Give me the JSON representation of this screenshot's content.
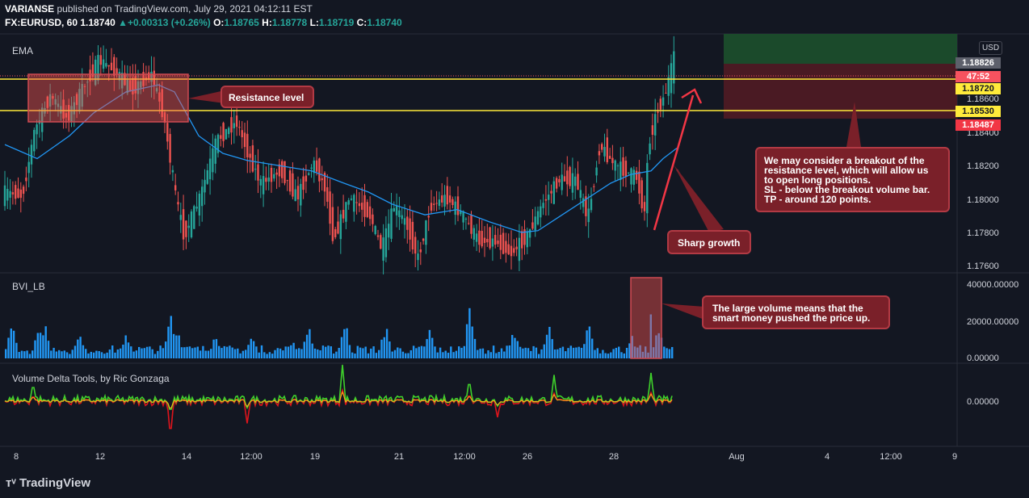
{
  "header": {
    "line1": {
      "author": "VARIANSE",
      "rest": " published on TradingView.com, July 29, 2021 04:12:11 EST"
    },
    "line2": {
      "symbol": "FX:EURUSD, 60",
      "last": "1.18740",
      "arrow": "▲",
      "change": "+0.00313 (+0.26%)",
      "o_lbl": "O:",
      "o": "1.18765",
      "h_lbl": "H:",
      "h": "1.18778",
      "l_lbl": "L:",
      "l": "1.18719",
      "c_lbl": "C:",
      "c": "1.18740"
    }
  },
  "panes": {
    "main": "EMA",
    "volume": "BVI_LB",
    "delta": "Volume Delta Tools, by Ric Gonzaga"
  },
  "currency": "USD",
  "price_axis": {
    "ticks": [
      "1.17600",
      "1.17800",
      "1.18000",
      "1.18200",
      "1.18400",
      "1.18600"
    ],
    "badges": [
      {
        "text": "1.18826",
        "bg": "#5d606b",
        "fg": "#ffffff"
      },
      {
        "text": "47:52",
        "bg": "#f7525f",
        "fg": "#ffffff"
      },
      {
        "text": "1.18720",
        "bg": "#ffeb3b",
        "fg": "#131722"
      },
      {
        "text": "1.18530",
        "bg": "#ffeb3b",
        "fg": "#131722"
      },
      {
        "text": "1.18487",
        "bg": "#f23645",
        "fg": "#ffffff"
      }
    ]
  },
  "volume_axis": {
    "ticks": [
      "40000.00000",
      "20000.00000",
      "0.00000"
    ]
  },
  "delta_axis": {
    "ticks": [
      "0.00000"
    ]
  },
  "time_axis": [
    "8",
    "12",
    "14",
    "12:00",
    "19",
    "21",
    "12:00",
    "26",
    "28",
    "Aug",
    "4",
    "12:00",
    "9"
  ],
  "notes": {
    "resistance": "Resistance level",
    "sharp": "Sharp growth",
    "breakout": [
      "We may consider a breakout of the",
      "resistance level, which will allow us",
      "to open long positions.",
      "SL - below the breakout volume bar.",
      "TP - around 120 points."
    ],
    "volume": [
      "The large volume means that the",
      "smart money pushed the price up."
    ]
  },
  "logo": "TradingView",
  "colors": {
    "bg": "#131722",
    "up": "#26a69a",
    "down": "#ef5350",
    "ema": "#2196f3",
    "resistance": "#ffeb3b",
    "volume": "#2196f3"
  },
  "chart_data": {
    "type": "candlestick",
    "symbol": "FX:EURUSD",
    "interval": "60",
    "price_levels": {
      "resistance_top": 1.1872,
      "resistance_bottom": 1.1853,
      "last_high": 1.18826,
      "stop_zone": 1.18487
    },
    "ylim": [
      1.1757,
      1.1893
    ],
    "path_keypoints": [
      {
        "x": 0,
        "y": 1.1803
      },
      {
        "x": 25,
        "y": 1.1801
      },
      {
        "x": 40,
        "y": 1.1838
      },
      {
        "x": 60,
        "y": 1.1858
      },
      {
        "x": 80,
        "y": 1.1845
      },
      {
        "x": 100,
        "y": 1.1862
      },
      {
        "x": 120,
        "y": 1.1878
      },
      {
        "x": 140,
        "y": 1.1872
      },
      {
        "x": 160,
        "y": 1.1861
      },
      {
        "x": 185,
        "y": 1.187
      },
      {
        "x": 200,
        "y": 1.1846
      },
      {
        "x": 215,
        "y": 1.18
      },
      {
        "x": 225,
        "y": 1.1778
      },
      {
        "x": 245,
        "y": 1.18
      },
      {
        "x": 265,
        "y": 1.1832
      },
      {
        "x": 290,
        "y": 1.1843
      },
      {
        "x": 305,
        "y": 1.1824
      },
      {
        "x": 320,
        "y": 1.1808
      },
      {
        "x": 345,
        "y": 1.1815
      },
      {
        "x": 365,
        "y": 1.18
      },
      {
        "x": 385,
        "y": 1.182
      },
      {
        "x": 400,
        "y": 1.1805
      },
      {
        "x": 410,
        "y": 1.1776
      },
      {
        "x": 430,
        "y": 1.18
      },
      {
        "x": 455,
        "y": 1.179
      },
      {
        "x": 470,
        "y": 1.177
      },
      {
        "x": 485,
        "y": 1.1795
      },
      {
        "x": 500,
        "y": 1.1785
      },
      {
        "x": 515,
        "y": 1.1765
      },
      {
        "x": 530,
        "y": 1.1795
      },
      {
        "x": 550,
        "y": 1.18
      },
      {
        "x": 570,
        "y": 1.179
      },
      {
        "x": 590,
        "y": 1.1775
      },
      {
        "x": 610,
        "y": 1.1775
      },
      {
        "x": 630,
        "y": 1.1768
      },
      {
        "x": 650,
        "y": 1.1778
      },
      {
        "x": 670,
        "y": 1.1797
      },
      {
        "x": 690,
        "y": 1.181
      },
      {
        "x": 710,
        "y": 1.181
      },
      {
        "x": 725,
        "y": 1.1788
      },
      {
        "x": 740,
        "y": 1.183
      },
      {
        "x": 755,
        "y": 1.182
      },
      {
        "x": 770,
        "y": 1.1815
      },
      {
        "x": 785,
        "y": 1.1812
      },
      {
        "x": 795,
        "y": 1.179
      },
      {
        "x": 800,
        "y": 1.183
      },
      {
        "x": 810,
        "y": 1.1848
      },
      {
        "x": 820,
        "y": 1.1858
      },
      {
        "x": 828,
        "y": 1.1872
      },
      {
        "x": 832,
        "y": 1.188
      }
    ],
    "ema_keypoints": [
      {
        "x": 0,
        "y": 1.183
      },
      {
        "x": 40,
        "y": 1.1822
      },
      {
        "x": 80,
        "y": 1.1835
      },
      {
        "x": 110,
        "y": 1.1848
      },
      {
        "x": 150,
        "y": 1.186
      },
      {
        "x": 190,
        "y": 1.1864
      },
      {
        "x": 210,
        "y": 1.186
      },
      {
        "x": 240,
        "y": 1.1835
      },
      {
        "x": 270,
        "y": 1.1825
      },
      {
        "x": 300,
        "y": 1.1821
      },
      {
        "x": 340,
        "y": 1.1818
      },
      {
        "x": 380,
        "y": 1.1815
      },
      {
        "x": 420,
        "y": 1.1808
      },
      {
        "x": 450,
        "y": 1.1803
      },
      {
        "x": 480,
        "y": 1.1796
      },
      {
        "x": 520,
        "y": 1.179
      },
      {
        "x": 560,
        "y": 1.1793
      },
      {
        "x": 600,
        "y": 1.1786
      },
      {
        "x": 640,
        "y": 1.178
      },
      {
        "x": 660,
        "y": 1.1781
      },
      {
        "x": 690,
        "y": 1.179
      },
      {
        "x": 720,
        "y": 1.1799
      },
      {
        "x": 750,
        "y": 1.1808
      },
      {
        "x": 775,
        "y": 1.1813
      },
      {
        "x": 800,
        "y": 1.1815
      },
      {
        "x": 815,
        "y": 1.1822
      },
      {
        "x": 832,
        "y": 1.1828
      }
    ],
    "volume_ylim": [
      0,
      46000
    ],
    "volume_spikes": [
      {
        "x": 8,
        "v": 20000
      },
      {
        "x": 42,
        "v": 22000
      },
      {
        "x": 48,
        "v": 20000
      },
      {
        "x": 90,
        "v": 16000
      },
      {
        "x": 150,
        "v": 14000
      },
      {
        "x": 205,
        "v": 29000
      },
      {
        "x": 212,
        "v": 19000
      },
      {
        "x": 260,
        "v": 15000
      },
      {
        "x": 305,
        "v": 14000
      },
      {
        "x": 355,
        "v": 10000
      },
      {
        "x": 375,
        "v": 18000
      },
      {
        "x": 420,
        "v": 22000
      },
      {
        "x": 470,
        "v": 20000
      },
      {
        "x": 525,
        "v": 17000
      },
      {
        "x": 575,
        "v": 33000
      },
      {
        "x": 630,
        "v": 17000
      },
      {
        "x": 672,
        "v": 19000
      },
      {
        "x": 722,
        "v": 20000
      },
      {
        "x": 775,
        "v": 12000
      },
      {
        "x": 798,
        "v": 44000
      },
      {
        "x": 808,
        "v": 18000
      },
      {
        "x": 826,
        "v": 9000
      }
    ],
    "delta_spikes": [
      {
        "x": 205,
        "v": -0.9
      },
      {
        "x": 418,
        "v": 0.9
      },
      {
        "x": 575,
        "v": 0.55
      },
      {
        "x": 680,
        "v": 0.65
      },
      {
        "x": 800,
        "v": 0.7
      },
      {
        "x": 35,
        "v": 0.45
      },
      {
        "x": 300,
        "v": -0.55
      },
      {
        "x": 610,
        "v": -0.4
      }
    ]
  }
}
